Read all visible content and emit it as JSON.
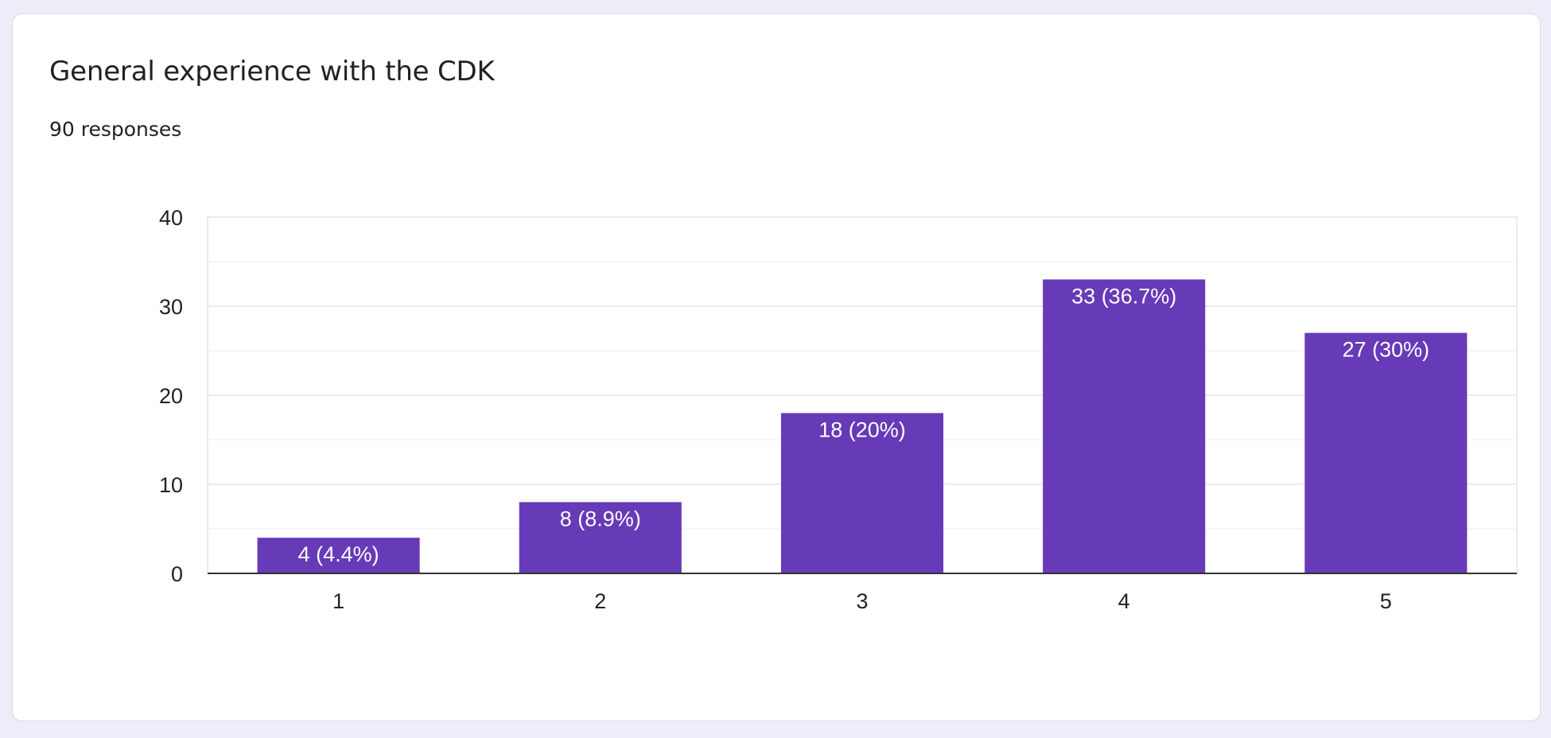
{
  "card": {
    "title": "General experience with the CDK",
    "subtitle": "90 responses"
  },
  "colors": {
    "bar": "#673ab7",
    "background": "#efebf8",
    "gridline": "#ebebeb",
    "axis": "#333333"
  },
  "chart_data": {
    "type": "bar",
    "title": "General experience with the CDK",
    "xlabel": "",
    "ylabel": "",
    "categories": [
      "1",
      "2",
      "3",
      "4",
      "5"
    ],
    "values": [
      4,
      8,
      18,
      33,
      27
    ],
    "data_labels": [
      "4 (4.4%)",
      "8 (8.9%)",
      "18 (20%)",
      "33 (36.7%)",
      "27 (30%)"
    ],
    "y_ticks": [
      "0",
      "10",
      "20",
      "30",
      "40"
    ],
    "ylim": [
      0,
      40
    ],
    "grid": true,
    "legend": "none"
  }
}
